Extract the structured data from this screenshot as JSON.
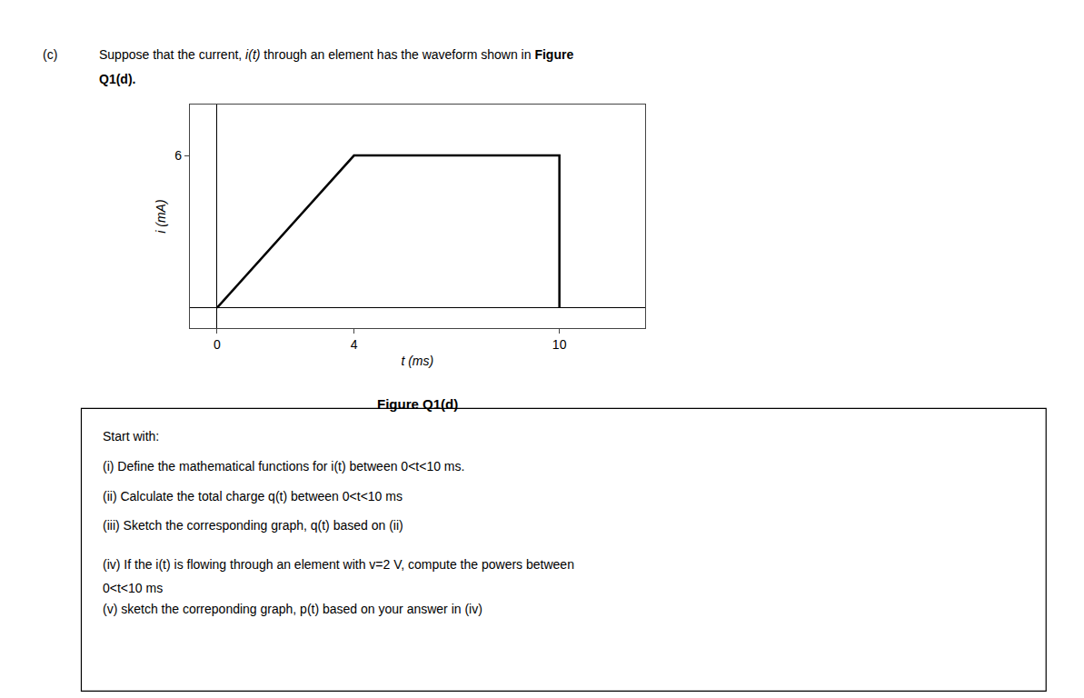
{
  "chart_data": {
    "type": "line",
    "x": [
      0,
      0,
      4,
      10,
      10
    ],
    "values": [
      0,
      0,
      6,
      6,
      0
    ],
    "color": "#000000",
    "x_label": "t (ms)",
    "y_label": "i (mA)",
    "xlim": [
      -0.8,
      12.5
    ],
    "ylim": [
      -0.8,
      8.0
    ],
    "xticks": [
      0,
      4,
      10
    ],
    "yticks": [
      6
    ],
    "grid": false,
    "annotations": [
      "(c)",
      "Suppose that the current, ",
      "i(t)",
      " through an element has the waveform shown in ",
      "Figure",
      "Q1(d).",
      "Figure Q1(d)",
      "Start with:",
      "(i) Define the mathematical functions for i(t) between 0<t<10 ms.",
      "(ii) Calculate the total charge q(t) between 0<t<10 ms",
      "(iii) Sketch the corresponding graph, q(t) based on (ii)",
      "(iv) If the i(t) is flowing through an element with v=2 V, compute the powers between",
      "0<t<10 ms",
      "(v) sketch the correponding graph, p(t) based on your answer in (iv)"
    ]
  }
}
